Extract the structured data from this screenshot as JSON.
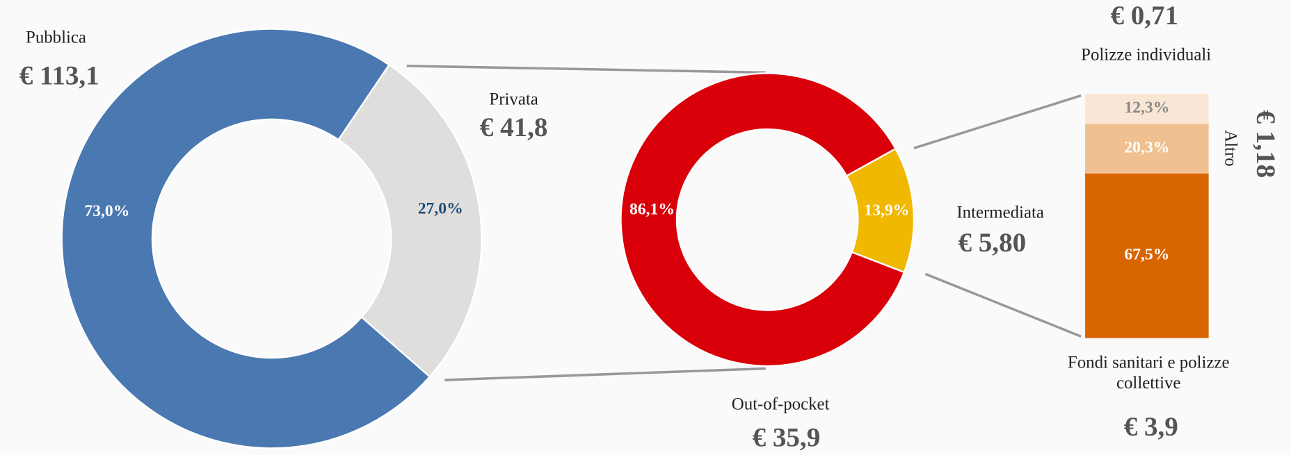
{
  "chart_data": [
    {
      "type": "donut",
      "categories": [
        "Pubblica",
        "Privata"
      ],
      "values": [
        73.0,
        27.0
      ],
      "value_labels": [
        "73,0%",
        "27,0%"
      ],
      "amount_labels": [
        "€ 113,1",
        "€ 41,8"
      ],
      "colors": [
        "#4a78b0",
        "#e0dedd"
      ]
    },
    {
      "type": "donut",
      "categories": [
        "Out-of-pocket",
        "Intermediata"
      ],
      "values": [
        86.1,
        13.9
      ],
      "value_labels": [
        "86,1%",
        "13,9%"
      ],
      "amount_labels": [
        "€ 35,9",
        "€ 5,80"
      ],
      "colors": [
        "#d9000a",
        "#f0b800"
      ]
    },
    {
      "type": "stacked-bar",
      "categories": [
        "Fondi sanitari e polizze collettive",
        "Altro",
        "Polizze individuali"
      ],
      "values": [
        67.5,
        20.3,
        12.3
      ],
      "value_labels": [
        "67,5%",
        "20,3%",
        "12,3%"
      ],
      "amount_labels": [
        "€ 3,9",
        "€ 1,18",
        "€ 0,71"
      ],
      "colors": [
        "#d96500",
        "#f0c090",
        "#fae6d5"
      ]
    }
  ]
}
